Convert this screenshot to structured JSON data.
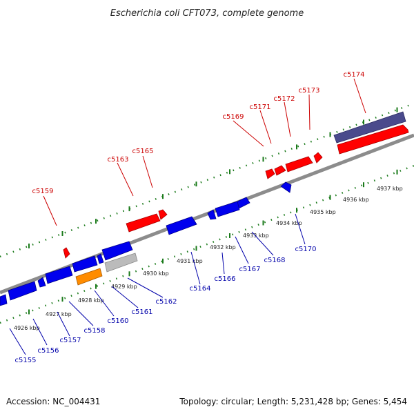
{
  "title": "Escherichia coli CFT073, complete genome",
  "footer": {
    "accession": "Accession: NC_004431",
    "topology": "Topology: circular; Length: 5,231,428 bp; Genes: 5,454"
  },
  "colors": {
    "backbone": "#8c8c8c",
    "tick": "#1a7a1a",
    "forward_gene": "#ff0000",
    "reverse_gene": "#0000ee",
    "forward_label": "#cc0000",
    "reverse_label": "#0000aa",
    "rrna": "#ff8c00",
    "pseudo": "#bbbbbb",
    "feature": "#4a4a8c"
  },
  "scale_labels": [
    "4926 kbp",
    "4927 kbp",
    "4928 kbp",
    "4929 kbp",
    "4930 kbp",
    "4931 kbp",
    "4932 kbp",
    "4933 kbp",
    "4934 kbp",
    "4935 kbp",
    "4936 kbp",
    "4937 kbp"
  ],
  "forward_labels": [
    "c5159",
    "c5163",
    "c5165",
    "c5169",
    "c5171",
    "c5172",
    "c5173",
    "c5174"
  ],
  "reverse_labels": [
    "c5155",
    "c5156",
    "c5157",
    "c5158",
    "c5160",
    "c5161",
    "c5162",
    "c5164",
    "c5166",
    "c5167",
    "c5168",
    "c5170"
  ]
}
